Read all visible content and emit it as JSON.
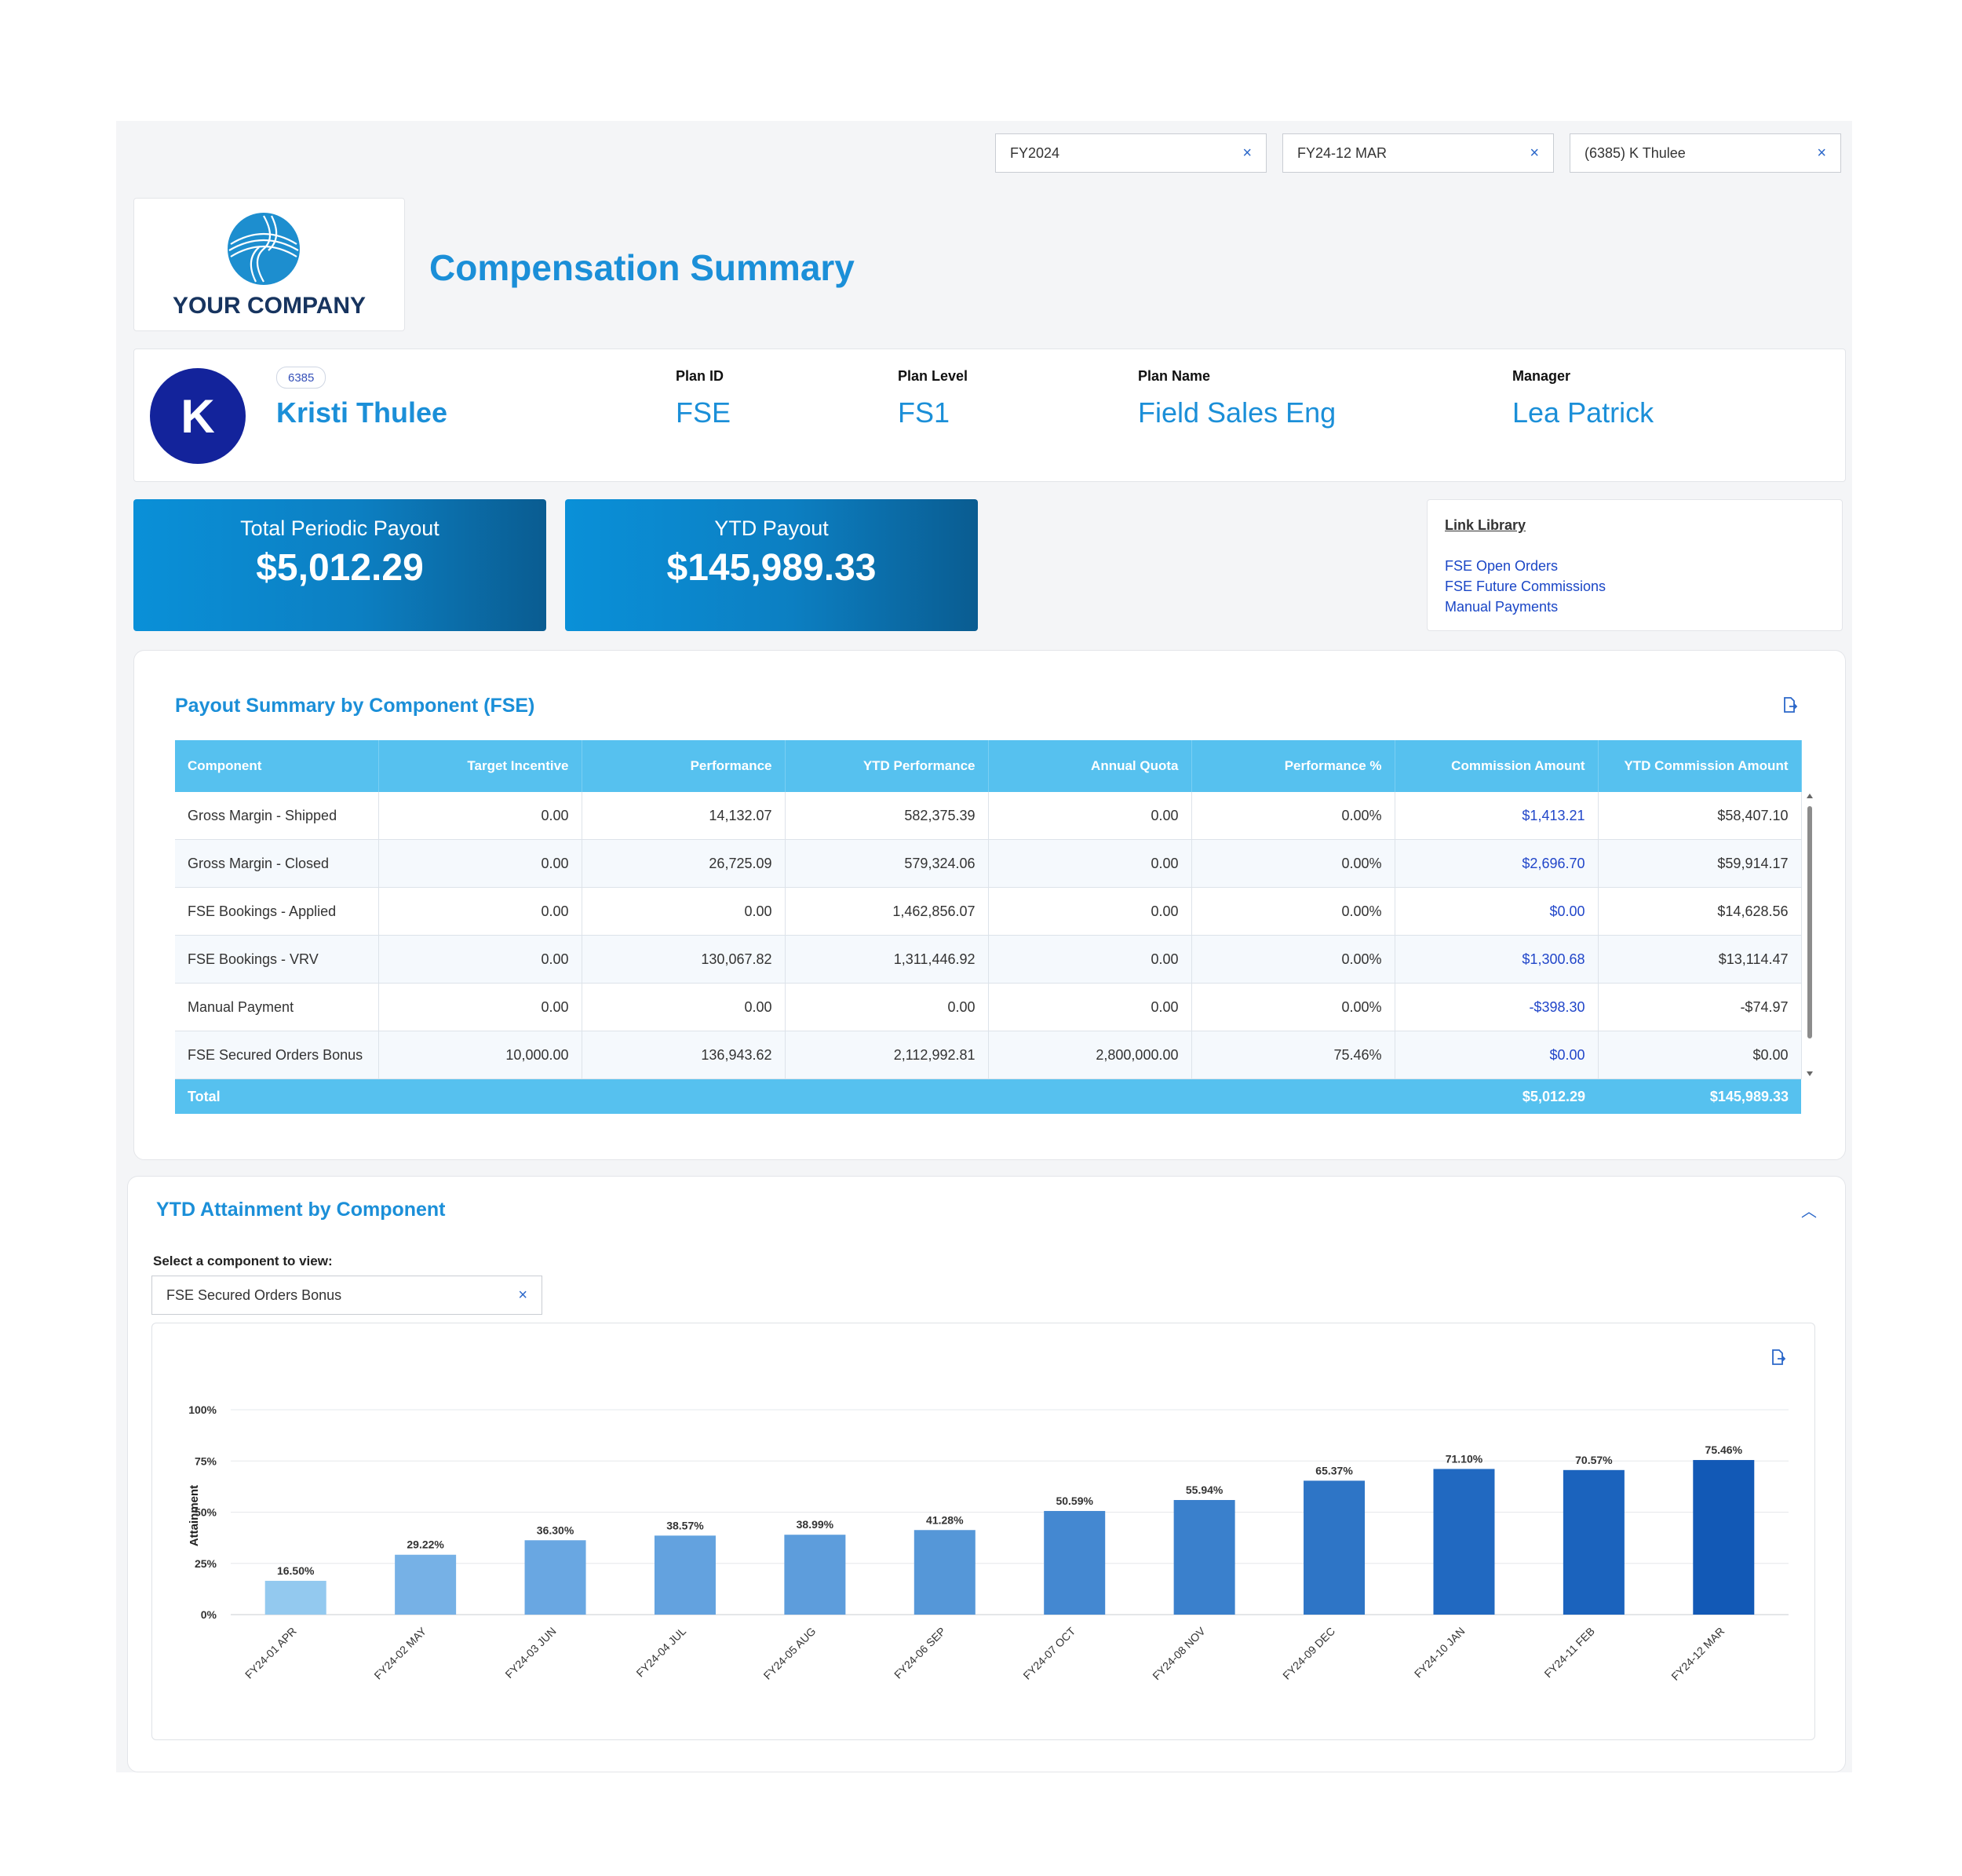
{
  "filters": [
    {
      "value": "FY2024"
    },
    {
      "value": "FY24-12 MAR"
    },
    {
      "value": "(6385) K Thulee"
    }
  ],
  "logo": {
    "text": "YOUR COMPANY"
  },
  "page_title": "Compensation Summary",
  "person": {
    "initial": "K",
    "id": "6385",
    "name": "Kristi Thulee",
    "fields": [
      {
        "label": "Plan ID",
        "value": "FSE"
      },
      {
        "label": "Plan Level",
        "value": "FS1"
      },
      {
        "label": "Plan Name",
        "value": "Field Sales Eng"
      },
      {
        "label": "Manager",
        "value": "Lea Patrick"
      }
    ]
  },
  "kpis": [
    {
      "label": "Total Periodic Payout",
      "value": "$5,012.29"
    },
    {
      "label": "YTD Payout",
      "value": "$145,989.33"
    }
  ],
  "link_library": {
    "title": "Link Library",
    "links": [
      "FSE Open Orders",
      "FSE Future Commissions",
      "Manual Payments"
    ]
  },
  "payout_table": {
    "title": "Payout Summary by Component (FSE)",
    "columns": [
      "Component",
      "Target Incentive",
      "Performance",
      "YTD Performance",
      "Annual Quota",
      "Performance %",
      "Commission Amount",
      "YTD Commission Amount"
    ],
    "rows": [
      [
        "Gross Margin - Shipped",
        "0.00",
        "14,132.07",
        "582,375.39",
        "0.00",
        "0.00%",
        "$1,413.21",
        "$58,407.10"
      ],
      [
        "Gross Margin - Closed",
        "0.00",
        "26,725.09",
        "579,324.06",
        "0.00",
        "0.00%",
        "$2,696.70",
        "$59,914.17"
      ],
      [
        "FSE Bookings - Applied",
        "0.00",
        "0.00",
        "1,462,856.07",
        "0.00",
        "0.00%",
        "$0.00",
        "$14,628.56"
      ],
      [
        "FSE Bookings - VRV",
        "0.00",
        "130,067.82",
        "1,311,446.92",
        "0.00",
        "0.00%",
        "$1,300.68",
        "$13,114.47"
      ],
      [
        "Manual Payment",
        "0.00",
        "0.00",
        "0.00",
        "0.00",
        "0.00%",
        "-$398.30",
        "-$74.97"
      ],
      [
        "FSE Secured Orders Bonus",
        "10,000.00",
        "136,943.62",
        "2,112,992.81",
        "2,800,000.00",
        "75.46%",
        "$0.00",
        "$0.00"
      ]
    ],
    "total": {
      "label": "Total",
      "commission": "$5,012.29",
      "ytd_commission": "$145,989.33"
    }
  },
  "attainment": {
    "title": "YTD Attainment by Component",
    "select_label": "Select a component to view:",
    "selected_component": "FSE Secured Orders Bonus"
  },
  "colors": {
    "accent": "#1b8fd8",
    "table_header": "#56c1ef",
    "link": "#1a46c6",
    "avatar": "#13239b"
  },
  "chart_data": {
    "type": "bar",
    "ylabel": "Attainment",
    "ylim": [
      0,
      100
    ],
    "yticks": [
      "0%",
      "25%",
      "50%",
      "75%",
      "100%"
    ],
    "grid": true,
    "categories": [
      "FY24-01 APR",
      "FY24-02 MAY",
      "FY24-03 JUN",
      "FY24-04 JUL",
      "FY24-05 AUG",
      "FY24-06 SEP",
      "FY24-07 OCT",
      "FY24-08 NOV",
      "FY24-09 DEC",
      "FY24-10 JAN",
      "FY24-11 FEB",
      "FY24-12 MAR"
    ],
    "values": [
      16.5,
      29.22,
      36.3,
      38.57,
      38.99,
      41.28,
      50.59,
      55.94,
      65.37,
      71.1,
      70.57,
      75.46
    ],
    "labels": [
      "16.50%",
      "29.22%",
      "36.30%",
      "38.57%",
      "38.99%",
      "41.28%",
      "50.59%",
      "55.94%",
      "65.37%",
      "71.10%",
      "70.57%",
      "75.46%"
    ],
    "bar_colors": [
      "#93c9ef",
      "#76b1e6",
      "#69a7e2",
      "#63a2df",
      "#5d9ddc",
      "#5597d8",
      "#4488d1",
      "#3a80cc",
      "#2e75c6",
      "#2169c1",
      "#1b63bd",
      "#1259b6"
    ]
  }
}
